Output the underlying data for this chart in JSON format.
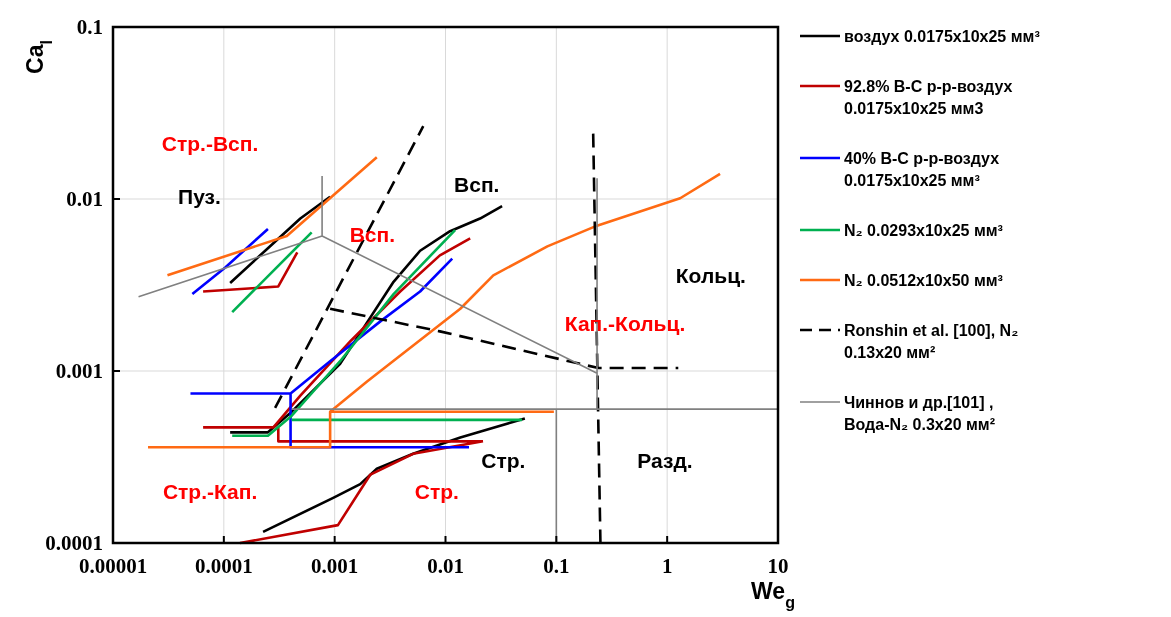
{
  "chart_data": {
    "type": "line",
    "xlabel": "We$_{g}$",
    "ylabel": "Ca$_{l}$",
    "log": "xy",
    "grid": true,
    "legend": "right",
    "xlim": [
      1e-05,
      10
    ],
    "ylim": [
      0.0001,
      0.1
    ],
    "xticks": [
      {
        "value": 1e-05,
        "label": "0.00001"
      },
      0.0001,
      0.001,
      0.01,
      0.1,
      1,
      10
    ],
    "yticks": [
      0.0001,
      0.001,
      0.01,
      0.1
    ],
    "series": [
      {
        "name": "воздух 0.0175x10x25 мм³",
        "color": "#000000",
        "x": [
          0.000114,
          0.00026,
          0.00049,
          0.00091,
          null,
          0.000114,
          0.00025,
          0.00041,
          0.00112,
          0.0034,
          0.0059,
          0.011,
          0.0205,
          0.0324,
          null,
          0.000226,
          0.00097,
          0.0017,
          0.0024,
          0.0051,
          0.0136,
          0.052
        ],
        "values": [
          0.00325,
          0.0053,
          0.0077,
          0.0103,
          null,
          0.00044,
          0.00044,
          0.00058,
          0.0011,
          0.0033,
          0.005,
          0.0065,
          0.0077,
          0.0091,
          null,
          0.000116,
          0.000183,
          0.00022,
          0.00027,
          0.00033,
          0.00041,
          0.00053
        ]
      },
      {
        "name": "92.8% В-С р-р-воздух 0.0175x10x25 мм3",
        "color": "#c00000",
        "x": [
          6.5e-05,
          0.00031,
          0.00046,
          null,
          6.5e-05,
          0.00028,
          0.00049,
          0.0014,
          0.0039,
          0.0089,
          0.0167,
          null,
          0.00031,
          0.00031,
          0.0218,
          null,
          0.00014,
          0.00107,
          0.0021,
          0.0051,
          0.0218
        ],
        "values": [
          0.0029,
          0.0031,
          0.0049,
          null,
          0.00047,
          0.00047,
          0.00072,
          0.0015,
          0.0029,
          0.0047,
          0.0059,
          null,
          0.00047,
          0.00039,
          0.00039,
          null,
          0.0001,
          0.000127,
          0.00025,
          0.00033,
          0.00039
        ]
      },
      {
        "name": "40% В-С р-р-воздух 0.0175x10x25 мм³",
        "color": "#0000ff",
        "x": [
          5.2e-05,
          0.000103,
          0.00025,
          null,
          5e-05,
          0.0004,
          0.00091,
          0.0026,
          0.0059,
          0.0115,
          null,
          0.0004,
          0.0004,
          0.0163
        ],
        "values": [
          0.0028,
          0.004,
          0.0067,
          null,
          0.00074,
          0.00074,
          0.00114,
          0.00195,
          0.0029,
          0.0045,
          null,
          0.00074,
          0.00036,
          0.00036
        ]
      },
      {
        "name": "N₂ 0.0293x10x25 мм³",
        "color": "#00b050",
        "x": [
          0.000119,
          0.00062,
          null,
          0.000119,
          0.00025,
          0.00041,
          0.00112,
          0.0034,
          0.0122,
          null,
          0.00041,
          0.049
        ],
        "values": [
          0.0022,
          0.0064,
          null,
          0.00042,
          0.00042,
          0.00055,
          0.00114,
          0.0028,
          0.0066,
          null,
          0.00052,
          0.00052
        ]
      },
      {
        "name": "N₂ 0.0512x10x50 мм³",
        "color": "#ff6a13",
        "x": [
          3.1e-05,
          0.00037,
          0.0024,
          null,
          2.07e-05,
          0.00091,
          0.00091,
          0.095,
          null,
          0.00091,
          0.00196,
          0.0136,
          0.027,
          0.083,
          0.233,
          1.31,
          3.0
        ],
        "values": [
          0.0036,
          0.0061,
          0.0175,
          null,
          0.00036,
          0.00036,
          0.00058,
          0.00058,
          null,
          0.00058,
          0.00087,
          0.0023,
          0.0036,
          0.0053,
          0.007,
          0.0101,
          0.014
        ]
      },
      {
        "name": "Ronshin et al. [100], N₂ 0.13x20 мм²",
        "color": "#000000",
        "line_style": "dashed",
        "x": [
          0.00029,
          0.0063,
          null,
          0.00091,
          0.0089,
          0.24,
          1.26,
          null,
          0.215,
          0.25
        ],
        "values": [
          0.00061,
          0.0265,
          null,
          0.0023,
          0.0017,
          0.00104,
          0.00104,
          null,
          0.024,
          0.0001
        ]
      },
      {
        "name": "Чиннов и др.[101] , Вода-N₂ 0.3x20 мм²",
        "color": "#808080",
        "x": [
          1.7e-05,
          0.00077,
          0.233,
          null,
          0.00077,
          0.00077,
          null,
          0.233,
          0.233,
          null,
          0.00041,
          0.1,
          10,
          null,
          0.1,
          0.1
        ],
        "values": [
          0.0027,
          0.0061,
          0.00097,
          null,
          0.0136,
          0.0061,
          null,
          0.0132,
          0.0006,
          null,
          0.0006,
          0.0006,
          0.0006,
          null,
          0.0006,
          0.0001
        ]
      }
    ],
    "annotations": [
      "Стр.-Всп.",
      "Пуз.",
      "Всп.",
      "Всп.",
      "Кольц.",
      "Кап.-Кольц.",
      "Стр.",
      "Разд.",
      "Стр.-Кап.",
      "Стр."
    ]
  }
}
